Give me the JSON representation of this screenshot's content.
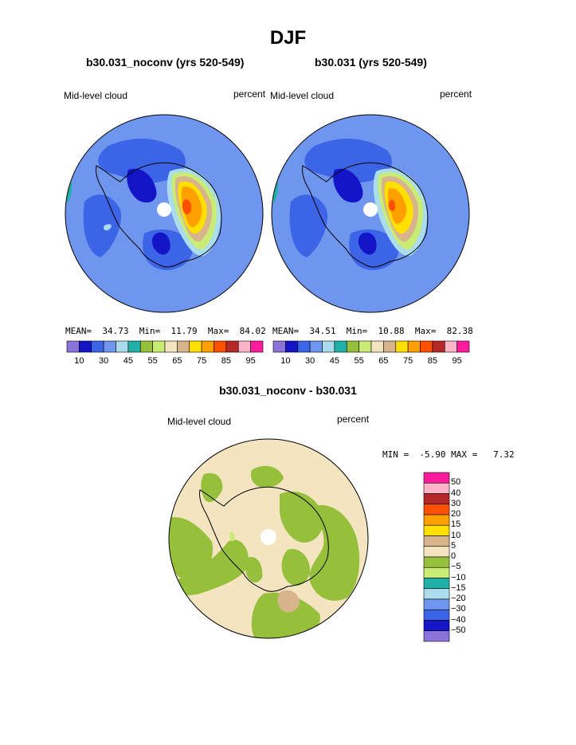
{
  "title": "DJF",
  "panels": [
    {
      "case_title": "b30.031_noconv (yrs 520-549)",
      "variable": "Mid-level cloud",
      "units": "percent",
      "stats": {
        "mean_label": "MEAN=",
        "mean": "34.73",
        "min_label": "Min=",
        "min": "11.79",
        "max_label": "Max=",
        "max": "84.02"
      }
    },
    {
      "case_title": "b30.031 (yrs 520-549)",
      "variable": "Mid-level cloud",
      "units": "percent",
      "stats": {
        "mean_label": "MEAN=",
        "mean": "34.51",
        "min_label": "Min=",
        "min": "10.88",
        "max_label": "Max=",
        "max": "82.38"
      }
    }
  ],
  "colorbar": {
    "colors": [
      "#8b73d9",
      "#1414c8",
      "#3c64e6",
      "#6e96ee",
      "#aadcec",
      "#20b0a8",
      "#96c03c",
      "#c8ec74",
      "#f4e4c0",
      "#d8b48c",
      "#ffe000",
      "#ffa000",
      "#ff5000",
      "#b42828",
      "#ffb4c8",
      "#ff1c9c"
    ],
    "tick_labels": [
      "10",
      "30",
      "45",
      "55",
      "65",
      "75",
      "85",
      "95"
    ]
  },
  "diff_panel": {
    "title": "b30.031_noconv - b30.031",
    "variable": "Mid-level cloud",
    "units": "percent",
    "stats": {
      "min_label": "MIN =",
      "min": "-5.90",
      "max_label": "MAX =",
      "max": "7.32"
    }
  },
  "diff_legend": {
    "colors": [
      "#ff1c9c",
      "#ffb4c8",
      "#b42828",
      "#ff5000",
      "#ffa000",
      "#ffe000",
      "#d8b48c",
      "#f4e4c0",
      "#96c03c",
      "#c8ec74",
      "#20b0a8",
      "#aadcec",
      "#6e96ee",
      "#3c64e6",
      "#1414c8",
      "#8b73d9"
    ],
    "labels": [
      "50",
      "40",
      "30",
      "20",
      "15",
      "10",
      "5",
      "0",
      "−5",
      "−10",
      "−15",
      "−20",
      "−30",
      "−40",
      "−50"
    ]
  }
}
